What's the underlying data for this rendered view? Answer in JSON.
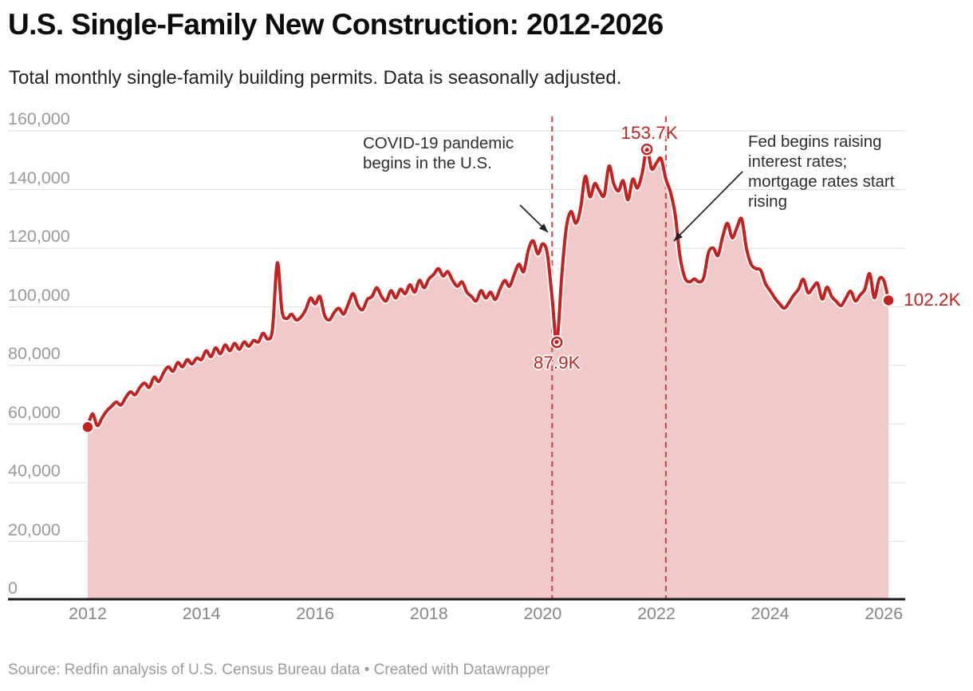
{
  "header": {
    "title": "U.S. Single-Family New Construction: 2012-2026",
    "subtitle": "Total monthly single-family building permits. Data is seasonally adjusted."
  },
  "footer": {
    "source": "Source: Redfin analysis of U.S. Census Bureau data • Created with Datawrapper"
  },
  "chart_data": {
    "type": "area",
    "title": "U.S. Single-Family New Construction: 2012-2026",
    "subtitle": "Total monthly single-family building permits. Data is seasonally adjusted.",
    "x_unit": "month",
    "x_range": [
      "2012-01",
      "2026-02"
    ],
    "ylim": [
      0,
      160000
    ],
    "grid": "horizontal",
    "y_ticks": [
      0,
      20000,
      40000,
      60000,
      80000,
      100000,
      120000,
      140000,
      160000
    ],
    "y_tick_labels": [
      "0",
      "20,000",
      "40,000",
      "60,000",
      "80,000",
      "100,000",
      "120,000",
      "140,000",
      "160,000"
    ],
    "x_ticks": [
      2012,
      2014,
      2016,
      2018,
      2020,
      2022,
      2024,
      2026
    ],
    "x_tick_labels": [
      "2012",
      "2014",
      "2016",
      "2018",
      "2020",
      "2022",
      "2024",
      "2026"
    ],
    "series": [
      {
        "name": "Total monthly single-family building permits",
        "start": "2012-01",
        "interval": "month",
        "values": [
          59000,
          63500,
          59500,
          62000,
          64500,
          66000,
          67500,
          66500,
          69000,
          71000,
          70000,
          72500,
          74000,
          72500,
          76000,
          74500,
          77500,
          79500,
          78000,
          81000,
          79500,
          82000,
          80500,
          82500,
          82000,
          85000,
          83000,
          86000,
          84000,
          87000,
          85000,
          87500,
          85500,
          88000,
          86500,
          88500,
          88000,
          91000,
          89000,
          92500,
          115000,
          98500,
          96000,
          97500,
          95500,
          96500,
          99000,
          103000,
          101000,
          103500,
          97000,
          95500,
          98000,
          99500,
          97500,
          101000,
          104500,
          100500,
          99000,
          102500,
          103500,
          106500,
          103500,
          102000,
          105500,
          103000,
          106000,
          104500,
          107500,
          105000,
          109000,
          106500,
          109500,
          111000,
          113000,
          110500,
          112000,
          109000,
          107000,
          108500,
          105000,
          103500,
          102000,
          105500,
          103000,
          105000,
          102500,
          106000,
          109000,
          107000,
          111000,
          114500,
          112000,
          119500,
          122500,
          118000,
          121500,
          118000,
          103000,
          87900,
          110000,
          127000,
          132500,
          128500,
          133500,
          144500,
          137500,
          142000,
          139500,
          138000,
          148000,
          142000,
          139500,
          143000,
          136500,
          143500,
          140500,
          145500,
          153700,
          147000,
          149000,
          150500,
          143500,
          139000,
          131000,
          117000,
          110000,
          108500,
          109500,
          108500,
          110000,
          118500,
          120000,
          117500,
          124000,
          128500,
          123500,
          127000,
          130000,
          120000,
          114500,
          113000,
          112500,
          108000,
          105500,
          103000,
          101000,
          99500,
          101500,
          104000,
          106000,
          109400,
          104800,
          106500,
          108000,
          102600,
          106700,
          103500,
          101800,
          100400,
          103000,
          105300,
          102000,
          104000,
          106000,
          111300,
          103100,
          109400,
          108900,
          102200
        ]
      }
    ],
    "dashed_lines": [
      {
        "date": "2020-03",
        "annotation": "COVID-19 pandemic begins in the U.S."
      },
      {
        "date": "2022-03",
        "annotation": "Fed begins raising interest rates; mortgage rates start rising"
      }
    ],
    "markers": [
      {
        "date": "2012-01",
        "value": 59000,
        "label": "",
        "shape": "dot",
        "label_pos": "none"
      },
      {
        "date": "2020-04",
        "value": 87900,
        "label": "87.9K",
        "shape": "open-circle",
        "label_pos": "below"
      },
      {
        "date": "2021-11",
        "value": 153700,
        "label": "153.7K",
        "shape": "open-circle",
        "label_pos": "above"
      },
      {
        "date": "2026-02",
        "value": 102200,
        "label": "102.2K",
        "shape": "dot",
        "label_pos": "right"
      }
    ],
    "colors": {
      "line": "#c4211f",
      "fill": "#f0c9c8",
      "dashed": "#ca5147",
      "label": "#c0241f",
      "grid": "#e2e2e2",
      "axis": "#1a1a1a",
      "tick_text": "#9a9a9a",
      "annotation_text": "#2e2e2e"
    }
  }
}
